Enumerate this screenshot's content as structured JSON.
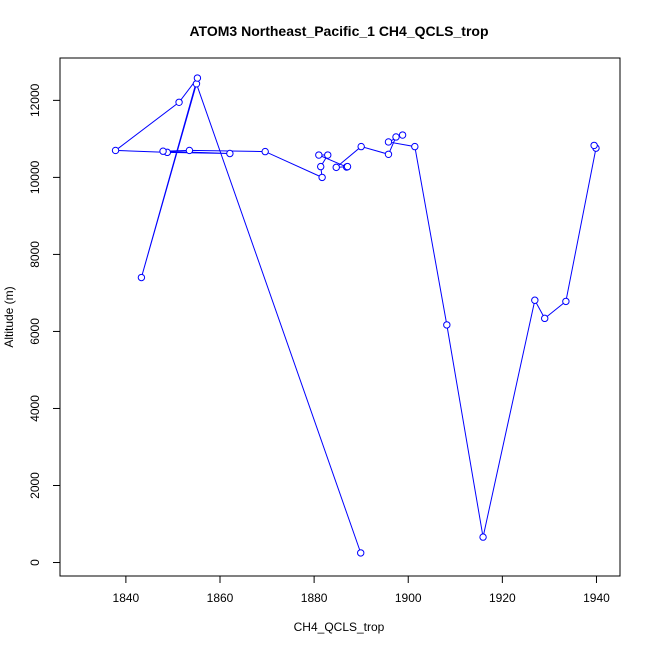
{
  "chart_data": {
    "type": "line",
    "title": "ATOM3 Northeast_Pacific_1 CH4_QCLS_trop",
    "xlabel": "CH4_QCLS_trop",
    "ylabel": "Altitude (m)",
    "xlim": [
      1826,
      1945
    ],
    "ylim": [
      -350,
      13100
    ],
    "x_ticks": [
      1840,
      1860,
      1880,
      1900,
      1920,
      1940
    ],
    "y_ticks": [
      0,
      2000,
      4000,
      6000,
      8000,
      10000,
      12000
    ],
    "grid": false,
    "markers": "open-circle",
    "color": "#0000ff",
    "series": [
      {
        "x": [
          1889.9,
          1855.0,
          1843.3,
          1855.2,
          1851.3,
          1837.8,
          1848.8,
          1862.1,
          1847.9,
          1853.5,
          1869.6,
          1881.7,
          1881.4,
          1882.9,
          1881.0,
          1886.9,
          1887.1,
          1884.7,
          1890.0,
          1895.8,
          1897.4,
          1898.8,
          1895.8,
          1901.4,
          1908.2,
          1915.9,
          1926.9,
          1929.0,
          1933.5,
          1939.9,
          1939.5
        ],
        "y": [
          250,
          12430,
          7400,
          12580,
          11950,
          10700,
          10650,
          10620,
          10680,
          10700,
          10670,
          10000,
          10280,
          10580,
          10580,
          10270,
          10280,
          10260,
          10800,
          10600,
          11050,
          11100,
          10920,
          10800,
          6170,
          660,
          6810,
          6340,
          6780,
          10760,
          10830
        ]
      }
    ]
  }
}
